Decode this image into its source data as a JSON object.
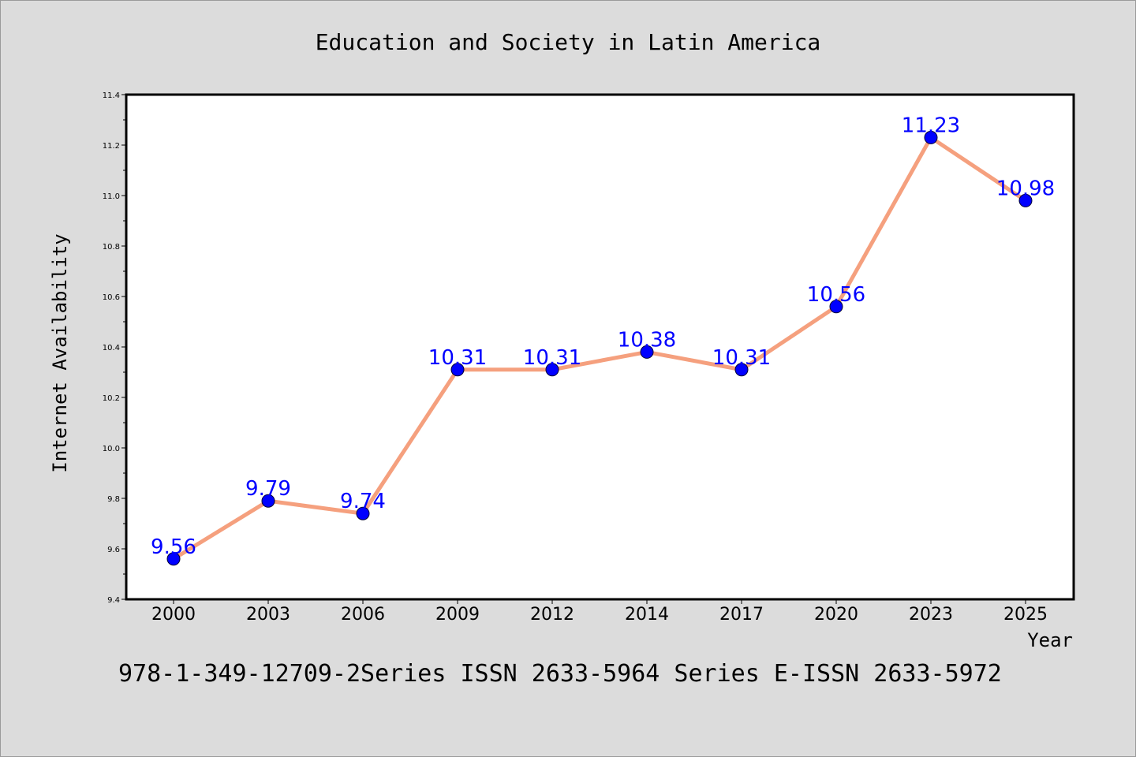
{
  "chart_data": {
    "type": "line",
    "title": "Education and Society in Latin America",
    "xlabel": "Year",
    "ylabel": "Internet Availability",
    "categories": [
      "2000",
      "2003",
      "2006",
      "2009",
      "2012",
      "2014",
      "2017",
      "2020",
      "2023",
      "2025"
    ],
    "series": [
      {
        "values": [
          9.56,
          9.79,
          9.74,
          10.31,
          10.31,
          10.38,
          10.31,
          10.56,
          11.23,
          10.98
        ],
        "labels": [
          "9.56",
          "9.79",
          "9.74",
          "10.31",
          "10.31",
          "10.38",
          "10.31",
          "10.56",
          "11.23",
          "10.98"
        ],
        "line_color": "#f5a07e",
        "marker_color": "#0000ff",
        "label_color": "#0000ff"
      }
    ],
    "ylim": [
      9.4,
      11.4
    ],
    "yticks": [
      "9.4",
      "9.6",
      "9.8",
      "10.0",
      "10.2",
      "10.4",
      "10.6",
      "10.8",
      "11.0",
      "11.2",
      "11.4"
    ],
    "grid": false,
    "legend": "none"
  },
  "footer": {
    "text": "978-1-349-12709-2Series ISSN 2633-5964 Series E-ISSN 2633-5972"
  },
  "colors": {
    "background": "#dcdcdc",
    "plot_background": "#ffffff",
    "axis": "#000000"
  }
}
